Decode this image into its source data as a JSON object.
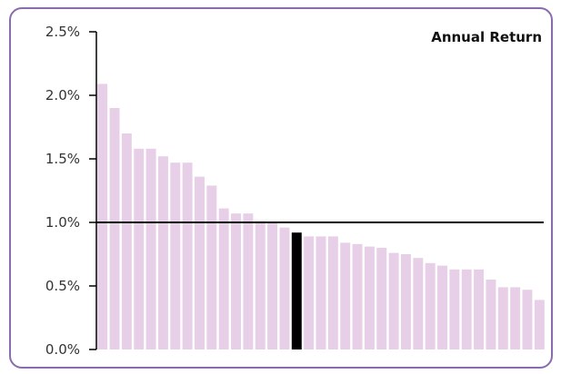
{
  "chart_data": {
    "type": "bar",
    "title": "Annual Return",
    "xlabel": "",
    "ylabel": "",
    "ylim": [
      0,
      2.5
    ],
    "y_ticks": [
      "0.0%",
      "0.5%",
      "1.0%",
      "1.5%",
      "2.0%",
      "2.5%"
    ],
    "y_tick_values": [
      0,
      0.5,
      1.0,
      1.5,
      2.0,
      2.5
    ],
    "grid": false,
    "reference_line": 1.0,
    "highlight_index": 16,
    "colors": {
      "bar": "#e8cfe8",
      "highlight": "#000000",
      "reference": "#000000",
      "frame": "#8a6cae"
    },
    "values": [
      2.09,
      1.9,
      1.7,
      1.58,
      1.58,
      1.52,
      1.47,
      1.47,
      1.36,
      1.29,
      1.11,
      1.07,
      1.07,
      1.01,
      1.0,
      0.96,
      0.92,
      0.89,
      0.89,
      0.89,
      0.84,
      0.83,
      0.81,
      0.8,
      0.76,
      0.75,
      0.72,
      0.68,
      0.66,
      0.63,
      0.63,
      0.63,
      0.55,
      0.49,
      0.49,
      0.47,
      0.39
    ]
  }
}
